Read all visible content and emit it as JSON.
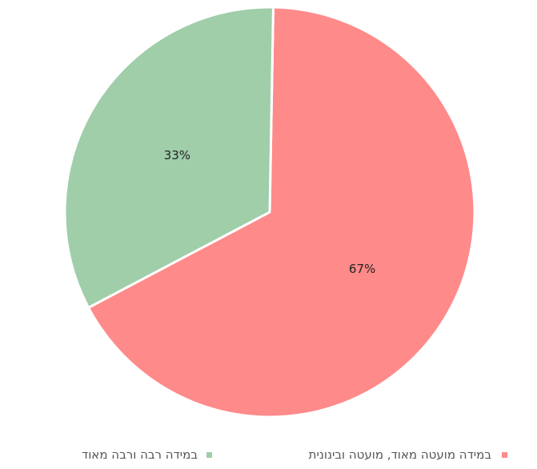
{
  "chart_data": {
    "type": "pie",
    "slices": [
      {
        "label": "במידה מועטה מאוד, מועטה ובינונית",
        "value": 67,
        "display": "67%",
        "color": "#ff8a8a"
      },
      {
        "label": "במידה רבה ורבה מאוד",
        "value": 33,
        "display": "33%",
        "color": "#9fcea9"
      }
    ],
    "legend_position": "bottom"
  }
}
